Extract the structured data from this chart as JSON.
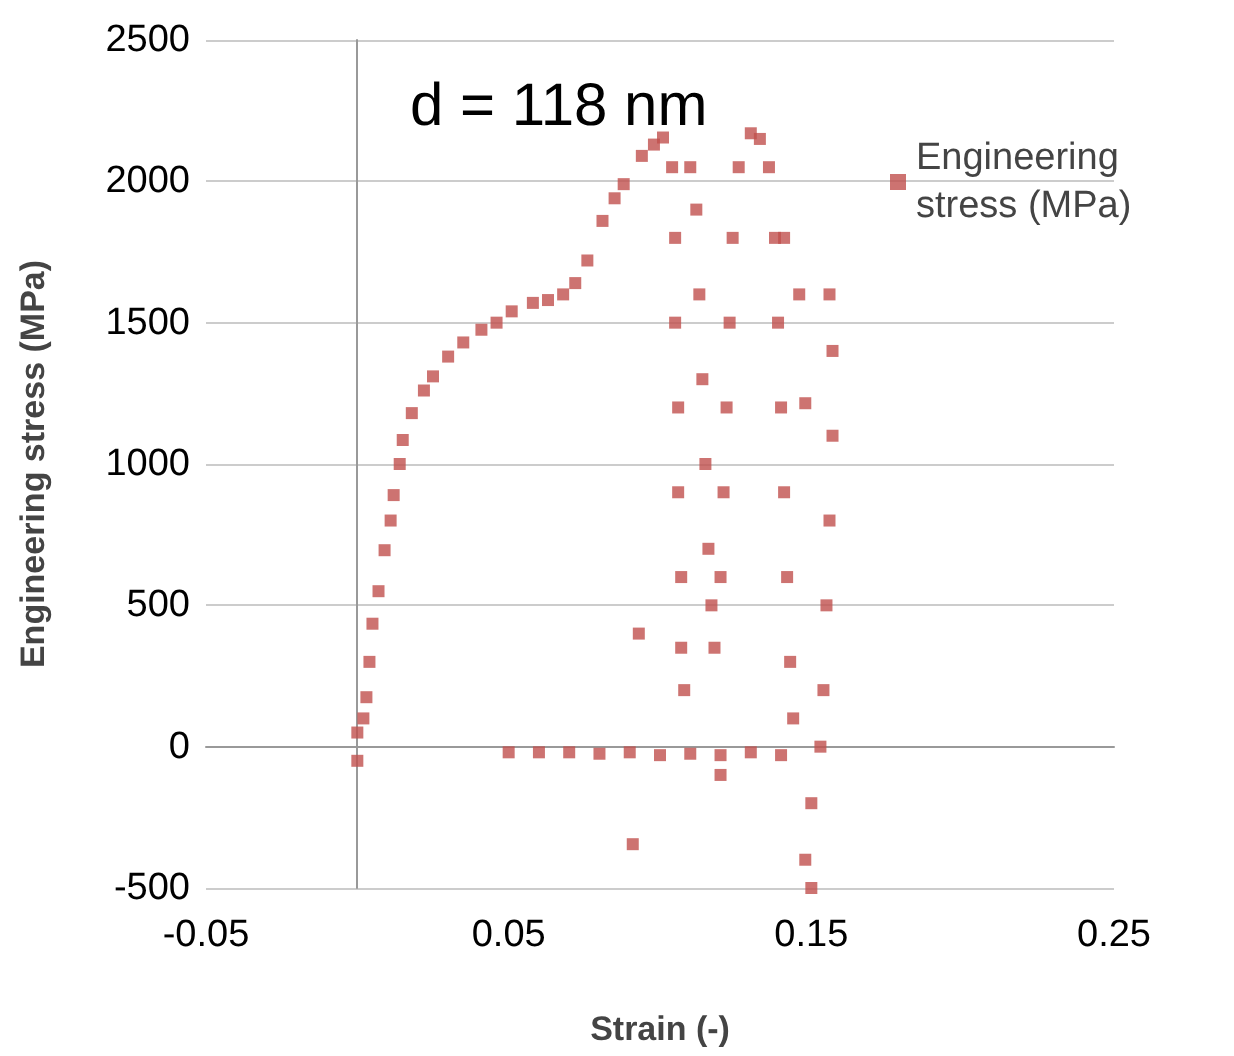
{
  "chart_data": {
    "type": "scatter",
    "xlabel": "Strain (-)",
    "ylabel": "Engineering stress (MPa)",
    "annotations": [
      "d = 118 nm"
    ],
    "xlim": [
      -0.05,
      0.25
    ],
    "xticks": [
      -0.05,
      0.05,
      0.15,
      0.25
    ],
    "ylim": [
      -500,
      2500
    ],
    "yticks": [
      -500,
      0,
      500,
      1000,
      1500,
      2000,
      2500
    ],
    "grid": "y",
    "legend": "top right",
    "marker": "square",
    "series": [
      {
        "name": "Engineering stress (MPa)",
        "color": "#c0504d",
        "x": [
          0.0,
          0.0,
          0.002,
          0.003,
          0.004,
          0.005,
          0.007,
          0.009,
          0.011,
          0.012,
          0.014,
          0.015,
          0.018,
          0.022,
          0.025,
          0.03,
          0.035,
          0.041,
          0.046,
          0.051,
          0.058,
          0.063,
          0.068,
          0.072,
          0.076,
          0.081,
          0.085,
          0.088,
          0.094,
          0.098,
          0.101,
          0.104,
          0.105,
          0.105,
          0.106,
          0.106,
          0.107,
          0.107,
          0.108,
          0.11,
          0.112,
          0.113,
          0.114,
          0.115,
          0.116,
          0.117,
          0.118,
          0.12,
          0.121,
          0.122,
          0.123,
          0.124,
          0.126,
          0.13,
          0.133,
          0.136,
          0.138,
          0.139,
          0.14,
          0.141,
          0.142,
          0.143,
          0.144,
          0.156,
          0.157,
          0.157,
          0.156,
          0.155,
          0.154,
          0.153,
          0.15,
          0.148,
          0.15,
          0.05,
          0.06,
          0.07,
          0.08,
          0.09,
          0.1,
          0.11,
          0.12,
          0.13,
          0.14,
          0.093,
          0.091,
          0.141,
          0.148,
          0.12,
          0.146
        ],
        "values": [
          -50,
          50,
          100,
          175,
          300,
          435,
          550,
          695,
          800,
          890,
          1000,
          1085,
          1180,
          1260,
          1310,
          1380,
          1430,
          1475,
          1500,
          1540,
          1570,
          1580,
          1600,
          1640,
          1720,
          1860,
          1940,
          1990,
          2090,
          2130,
          2155,
          2050,
          1800,
          1500,
          1200,
          900,
          600,
          350,
          200,
          2050,
          1900,
          1600,
          1300,
          1000,
          700,
          500,
          350,
          600,
          900,
          1200,
          1500,
          1800,
          2050,
          2170,
          2150,
          2050,
          1800,
          1500,
          1200,
          900,
          600,
          300,
          100,
          1600,
          1400,
          1100,
          800,
          500,
          200,
          0,
          -200,
          -400,
          -500,
          -20,
          -20,
          -20,
          -25,
          -20,
          -30,
          -25,
          -30,
          -20,
          -30,
          400,
          -345,
          1800,
          1215,
          -100,
          1600
        ]
      }
    ]
  }
}
